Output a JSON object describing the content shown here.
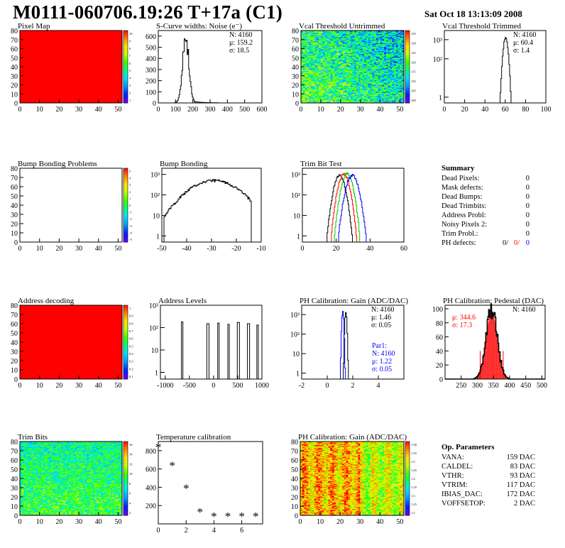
{
  "header": {
    "title": "M0111-060706.19:26 T+17a (C1)",
    "timestamp": "Sat Oct 18 13:13:09 2008"
  },
  "colors": {
    "black": "#000000",
    "red": "#ff0000",
    "green": "#00cc00",
    "blue": "#0000ff",
    "gradient": [
      "#6a00ff",
      "#0022ff",
      "#0099ff",
      "#00e0ff",
      "#00ff80",
      "#40ff00",
      "#c8ff00",
      "#ffe000",
      "#ff8000",
      "#ff0000"
    ]
  },
  "chart_data": [
    {
      "id": "pixel-map",
      "type": "heatmap",
      "title": "Pixel Map",
      "xlim": [
        0,
        52
      ],
      "ylim": [
        0,
        80
      ],
      "xticks": [
        "0",
        "10",
        "20",
        "30",
        "40",
        "50"
      ],
      "yticks": [
        "0",
        "10",
        "20",
        "30",
        "40",
        "50",
        "60",
        "70",
        "80"
      ],
      "fill": "uniform",
      "color": "#ff0000",
      "zlim": [
        0,
        10
      ],
      "ztick_labels": [
        "10",
        "9",
        "8",
        "7",
        "6",
        "5",
        "4",
        "3",
        "2",
        "1"
      ]
    },
    {
      "id": "s-curve-widths",
      "type": "histogram",
      "title": "S-Curve widths: Noise (e⁻)",
      "xlim": [
        0,
        600
      ],
      "ylim": [
        0,
        650
      ],
      "xticks": [
        "0",
        "100",
        "200",
        "300",
        "400",
        "500",
        "600"
      ],
      "yticks": [
        "0",
        "100",
        "200",
        "300",
        "400",
        "500",
        "600"
      ],
      "stats": [
        "N: 4160",
        "μ: 159.2",
        "σ: 18.5"
      ],
      "series": [
        {
          "dist": "gauss",
          "mean": 159.2,
          "sigma": 18.5,
          "peak": 580,
          "color": "#000000",
          "tail": true
        }
      ]
    },
    {
      "id": "vcal-untrimmed",
      "type": "heatmap",
      "title": "Vcal Threshold Untrimmed",
      "xlim": [
        0,
        52
      ],
      "ylim": [
        0,
        80
      ],
      "xticks": [
        "0",
        "10",
        "20",
        "30",
        "40",
        "50"
      ],
      "yticks": [
        "0",
        "10",
        "20",
        "30",
        "40",
        "50",
        "60",
        "70",
        "80"
      ],
      "fill": "noise_untrimmed",
      "zlim": [
        95,
        138
      ],
      "ztick_labels": [
        "135",
        "130",
        "125",
        "120",
        "115",
        "110",
        "105",
        "100"
      ]
    },
    {
      "id": "vcal-trimmed",
      "type": "histogram",
      "title": "Vcal Threshold Trimmed",
      "xlim": [
        0,
        100
      ],
      "ylim": [
        0.5,
        3000
      ],
      "log": true,
      "xticks": [
        "0",
        "20",
        "40",
        "60",
        "80",
        "100"
      ],
      "yticks": [
        "1",
        "10²",
        "10³"
      ],
      "stats": [
        "N: 4160",
        "μ: 60.4",
        "σ:  1.4"
      ],
      "series": [
        {
          "dist": "gauss",
          "mean": 60.4,
          "sigma": 1.4,
          "peak": 1200,
          "color": "#000000"
        }
      ]
    },
    {
      "id": "bump-bonding-problems",
      "type": "heatmap",
      "title": "Bump Bonding Problems",
      "xlim": [
        0,
        52
      ],
      "ylim": [
        0,
        80
      ],
      "xticks": [
        "0",
        "10",
        "20",
        "30",
        "40",
        "50"
      ],
      "yticks": [
        "0",
        "10",
        "20",
        "30",
        "40",
        "50",
        "60",
        "70",
        "80"
      ],
      "fill": "empty",
      "zlim": [
        -5,
        5
      ],
      "ztick_labels": [
        "5",
        "4",
        "3",
        "2",
        "1",
        "0",
        "-1",
        "-2",
        "-3",
        "-4",
        "-5"
      ]
    },
    {
      "id": "bump-bonding",
      "type": "histogram",
      "title": "Bump Bonding",
      "xlim": [
        -50,
        -10
      ],
      "ylim": [
        0.5,
        2000
      ],
      "log": true,
      "xticks": [
        "-50",
        "-40",
        "-30",
        "-20",
        "-10"
      ],
      "yticks": [
        "1",
        "10",
        "10²",
        "10³"
      ],
      "series": [
        {
          "dist": "broad",
          "mean": -29,
          "sigma": 7,
          "peak": 500,
          "from": -49,
          "to": -14,
          "color": "#000000"
        }
      ]
    },
    {
      "id": "trim-bit-test",
      "type": "histogram",
      "title": "Trim Bit Test",
      "xlim": [
        0,
        60
      ],
      "ylim": [
        0.5,
        2000
      ],
      "log": true,
      "xticks": [
        "0",
        "20",
        "40",
        "60"
      ],
      "yticks": [
        "1",
        "10",
        "10²",
        "10³"
      ],
      "series": [
        {
          "dist": "gauss",
          "mean": 22,
          "sigma": 2.0,
          "peak": 900,
          "color": "#000000"
        },
        {
          "dist": "gauss",
          "mean": 24.5,
          "sigma": 2.0,
          "peak": 1000,
          "color": "#ff0000"
        },
        {
          "dist": "gauss",
          "mean": 26.5,
          "sigma": 2.0,
          "peak": 1100,
          "color": "#00cc00"
        },
        {
          "dist": "gauss",
          "mean": 29.5,
          "sigma": 2.2,
          "peak": 900,
          "color": "#0000ff"
        }
      ]
    },
    {
      "id": "summary",
      "type": "table",
      "title": "Summary",
      "rows": [
        {
          "label": "Dead Pixels:",
          "value": "0"
        },
        {
          "label": "Mask defects:",
          "value": "0"
        },
        {
          "label": "Dead Bumps:",
          "value": "0"
        },
        {
          "label": "Dead Trimbits:",
          "value": "0"
        },
        {
          "label": "Address Probl:",
          "value": "0"
        },
        {
          "label": "Noisy Pixels 2:",
          "value": "0"
        },
        {
          "label": "Trim Probl.:",
          "value": "0"
        }
      ],
      "ph_defects": {
        "label": "PH defects:",
        "v1": "0/",
        "v2": "0/",
        "v3": "0"
      }
    },
    {
      "id": "address-decoding",
      "type": "heatmap",
      "title": "Address decoding",
      "xlim": [
        0,
        52
      ],
      "ylim": [
        0,
        80
      ],
      "xticks": [
        "0",
        "10",
        "20",
        "30",
        "40",
        "50"
      ],
      "yticks": [
        "0",
        "10",
        "20",
        "30",
        "40",
        "50",
        "60",
        "70",
        "80"
      ],
      "fill": "uniform",
      "color": "#ff0000",
      "zlim": [
        0,
        1
      ],
      "ztick_labels": [
        "1",
        "0.9",
        "0.8",
        "0.7",
        "0.6",
        "0.5",
        "0.4",
        "0.3",
        "0.2",
        "0.1"
      ]
    },
    {
      "id": "address-levels",
      "type": "histogram",
      "title": "Address Levels",
      "xlim": [
        -1100,
        1000
      ],
      "ylim": [
        0.5,
        1000
      ],
      "log": true,
      "xticks": [
        "-1000",
        "-500",
        "0",
        "500",
        "1000"
      ],
      "yticks": [
        "1",
        "10",
        "10²",
        "10³"
      ],
      "series": [
        {
          "dist": "spike",
          "x": -650,
          "peak": 180,
          "color": "#000000"
        },
        {
          "dist": "spike",
          "x": -120,
          "peak": 150,
          "color": "#000000"
        },
        {
          "dist": "spike",
          "x": 100,
          "peak": 160,
          "color": "#000000"
        },
        {
          "dist": "spike",
          "x": 310,
          "peak": 140,
          "color": "#000000"
        },
        {
          "dist": "spike",
          "x": 510,
          "peak": 170,
          "color": "#000000"
        },
        {
          "dist": "spike",
          "x": 720,
          "peak": 150,
          "color": "#000000"
        },
        {
          "dist": "spike",
          "x": 910,
          "peak": 130,
          "color": "#000000"
        }
      ]
    },
    {
      "id": "ph-gain-hist",
      "type": "histogram",
      "title": "PH Calibration: Gain (ADC/DAC)",
      "xlim": [
        -2,
        6
      ],
      "ylim": [
        0.5,
        3000
      ],
      "log": true,
      "xticks": [
        "-2",
        "0",
        "2",
        "4"
      ],
      "yticks": [
        "1",
        "10",
        "10²",
        "10³"
      ],
      "stats": [
        "N: 4160",
        "μ: 1.46",
        "σ: 0.05"
      ],
      "stats2": [
        "Par1:",
        "N: 4160",
        "μ: 1.22",
        "σ: 0.05"
      ],
      "series": [
        {
          "dist": "gauss",
          "mean": 1.46,
          "sigma": 0.05,
          "peak": 1400,
          "color": "#000000"
        },
        {
          "dist": "gauss",
          "mean": 1.22,
          "sigma": 0.05,
          "peak": 1300,
          "color": "#0000ff"
        }
      ]
    },
    {
      "id": "ph-pedestal",
      "type": "histogram",
      "title": "PH Calibration: Pedestal (DAC)",
      "xlim": [
        200,
        510
      ],
      "ylim": [
        0,
        105
      ],
      "xticks": [
        "250",
        "300",
        "350",
        "400",
        "450",
        "500"
      ],
      "yticks": [
        "0",
        "20",
        "40",
        "60",
        "80",
        "100"
      ],
      "stats": [
        "N: 4160"
      ],
      "stats_red": [
        "μ: 344.6",
        "σ: 17.3"
      ],
      "series": [
        {
          "dist": "gauss",
          "mean": 344.6,
          "sigma": 17.3,
          "peak": 97,
          "color": "#000000",
          "fit": true
        }
      ]
    },
    {
      "id": "trim-bits",
      "type": "heatmap",
      "title": "Trim Bits",
      "xlim": [
        0,
        52
      ],
      "ylim": [
        0,
        80
      ],
      "xticks": [
        "0",
        "10",
        "20",
        "30",
        "40",
        "50"
      ],
      "yticks": [
        "0",
        "10",
        "20",
        "30",
        "40",
        "50",
        "60",
        "70",
        "80"
      ],
      "fill": "noise_trim",
      "zlim": [
        0,
        16
      ],
      "ztick_labels": [
        "16",
        "14",
        "12",
        "10",
        "8",
        "6",
        "4",
        "2"
      ]
    },
    {
      "id": "temperature-calibration",
      "type": "scatter",
      "title": "Temperature calibration",
      "xlim": [
        0,
        7.5
      ],
      "ylim": [
        0,
        900
      ],
      "xticks": [
        "0",
        "2",
        "4",
        "6"
      ],
      "yticks": [
        "200",
        "400",
        "600",
        "800"
      ],
      "points": [
        [
          0,
          840
        ],
        [
          1,
          640
        ],
        [
          2,
          390
        ],
        [
          3,
          130
        ],
        [
          4,
          85
        ],
        [
          5,
          85
        ],
        [
          6,
          85
        ],
        [
          7,
          85
        ]
      ]
    },
    {
      "id": "ph-gain-map",
      "type": "heatmap",
      "title": "PH Calibration: Gain (ADC/DAC)",
      "xlim": [
        0,
        52
      ],
      "ylim": [
        0,
        80
      ],
      "xticks": [
        "0",
        "10",
        "20",
        "30",
        "40",
        "50"
      ],
      "yticks": [
        "0",
        "10",
        "20",
        "30",
        "40",
        "50",
        "60",
        "70",
        "80"
      ],
      "fill": "noise_gain",
      "zlim": [
        1.2,
        1.6
      ],
      "ztick_labels": [
        "1.58",
        "1.55",
        "1.5",
        "1.45",
        "1.4",
        "1.35",
        "1.3",
        "1.25",
        "1.2"
      ]
    },
    {
      "id": "op-parameters",
      "type": "table",
      "title": "Op. Parameters",
      "rows": [
        {
          "label": "VANA:",
          "value": "159 DAC"
        },
        {
          "label": "CALDEL:",
          "value": "83 DAC"
        },
        {
          "label": "VTHR:",
          "value": "93 DAC"
        },
        {
          "label": "VTRIM:",
          "value": "117 DAC"
        },
        {
          "label": "IBIAS_DAC:",
          "value": "172 DAC"
        },
        {
          "label": "VOFFSETOP:",
          "value": "2 DAC"
        }
      ]
    }
  ]
}
